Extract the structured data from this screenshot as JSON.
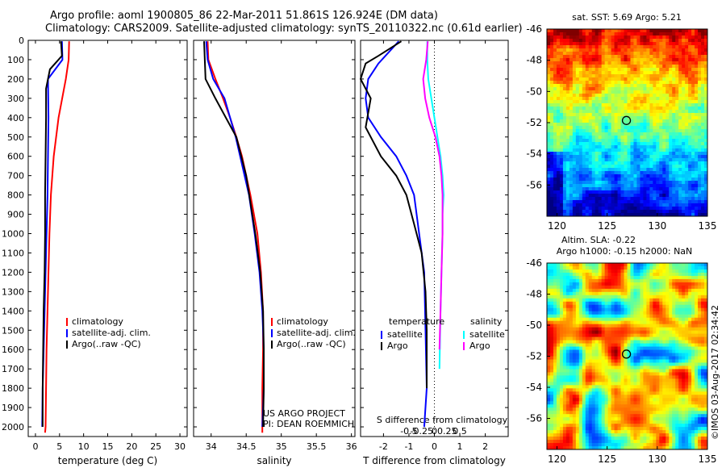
{
  "header": {
    "line1": "Argo profile: aoml 1900805_86 22-Mar-2011 51.861S 126.924E (DM data)",
    "line2": "Climatology: CARS2009. Satellite-adjusted climatology: synTS_20110322.nc (0.61d earlier)"
  },
  "colors": {
    "climatology": "#ff0000",
    "satellite": "#0000ff",
    "argo": "#000000",
    "cyan": "#00ffff",
    "magenta": "#ff00ff"
  },
  "chart_data": [
    {
      "type": "line",
      "id": "temperature",
      "xlabel": "temperature (deg C)",
      "ylim": [
        2050,
        0
      ],
      "xlim": [
        -1.5,
        31.5
      ],
      "xticks": [
        0,
        5,
        10,
        15,
        20,
        25,
        30
      ],
      "yticks": [
        0,
        100,
        200,
        300,
        400,
        500,
        600,
        700,
        800,
        900,
        1000,
        1100,
        1200,
        1300,
        1400,
        1500,
        1600,
        1700,
        1800,
        1900,
        2000
      ],
      "legend": [
        "climatology",
        "satellite-adj. clim.",
        "Argo(..raw -QC)"
      ],
      "series": [
        {
          "name": "climatology",
          "color": "#ff0000",
          "x": [
            7.0,
            6.9,
            6.3,
            4.8,
            3.8,
            3.2,
            2.9,
            2.7,
            2.5,
            2.3,
            2.2,
            2.1,
            2.0
          ],
          "y": [
            5,
            100,
            200,
            400,
            600,
            800,
            1000,
            1200,
            1400,
            1600,
            1800,
            2000,
            2030
          ]
        },
        {
          "name": "satellite-adj. clim.",
          "color": "#0000ff",
          "x": [
            5.5,
            5.6,
            2.6,
            2.7,
            2.6,
            2.5,
            2.3,
            2.1,
            1.9,
            1.7,
            1.5,
            1.4
          ],
          "y": [
            5,
            100,
            200,
            400,
            600,
            800,
            1000,
            1200,
            1400,
            1600,
            1800,
            2000
          ]
        },
        {
          "name": "Argo(..raw -QC)",
          "color": "#000000",
          "x": [
            5.3,
            5.5,
            3.0,
            2.2,
            2.2,
            2.1,
            2.0,
            2.0,
            1.9,
            1.7,
            1.6,
            1.5,
            1.5
          ],
          "y": [
            5,
            80,
            150,
            250,
            400,
            600,
            800,
            1000,
            1200,
            1400,
            1600,
            1800,
            2000
          ]
        }
      ]
    },
    {
      "type": "line",
      "id": "salinity",
      "xlabel": "salinity",
      "ylim": [
        2050,
        0
      ],
      "xlim": [
        33.75,
        36.05
      ],
      "xticks": [
        34,
        34.5,
        35,
        35.5,
        36
      ],
      "xticklabels": [
        "34",
        "34.5",
        "35",
        "35.5",
        "36"
      ],
      "legend": [
        "climatology",
        "satellite-adj. clim.",
        "Argo(..raw -QC)"
      ],
      "annotation": [
        "US ARGO PROJECT",
        "PI: DEAN ROEMMICH"
      ],
      "series": [
        {
          "name": "climatology",
          "color": "#ff0000",
          "x": [
            33.95,
            33.96,
            34.06,
            34.17,
            34.27,
            34.36,
            34.44,
            34.56,
            34.66,
            34.71,
            34.74,
            34.74,
            34.73,
            34.73
          ],
          "y": [
            5,
            100,
            200,
            300,
            400,
            500,
            600,
            800,
            1000,
            1200,
            1400,
            1600,
            1800,
            2030
          ]
        },
        {
          "name": "satellite-adj. clim.",
          "color": "#0000ff",
          "x": [
            33.93,
            33.95,
            34.03,
            34.19,
            34.35,
            34.54,
            34.62,
            34.69,
            34.73,
            34.75,
            34.75,
            34.74,
            34.73
          ],
          "y": [
            5,
            100,
            200,
            300,
            500,
            800,
            1000,
            1200,
            1400,
            1600,
            1800,
            1900,
            2000
          ]
        },
        {
          "name": "Argo(..raw -QC)",
          "color": "#000000",
          "x": [
            33.9,
            33.92,
            34.06,
            34.36,
            34.5,
            34.63,
            34.7,
            34.74,
            34.75,
            34.75,
            34.74
          ],
          "y": [
            5,
            200,
            300,
            500,
            700,
            1000,
            1200,
            1400,
            1600,
            1800,
            2000
          ]
        }
      ]
    },
    {
      "type": "line",
      "id": "difference",
      "xlabel": "T difference from climatology",
      "xlabel_top": "S difference from climatology",
      "ylim": [
        2050,
        0
      ],
      "xlim": [
        -2.9,
        2.9
      ],
      "xticks": [
        -2,
        -1,
        0,
        1,
        2
      ],
      "xticklabels": [
        "-2",
        "-1",
        "0",
        "1",
        "2"
      ],
      "sticks": [
        -0.5,
        -0.25,
        0,
        0.25,
        0.5
      ],
      "sticklabels": [
        "-0.5",
        "-0.25",
        "0",
        "0.25",
        "0.5"
      ],
      "legend": {
        "temperature_head": "temperature",
        "salinity_head": "salinity",
        "rows": [
          "satellite",
          "Argo"
        ]
      },
      "series": [
        {
          "name": "temperature satellite",
          "color": "#0000ff",
          "x": [
            -1.4,
            -2.2,
            -2.6,
            -2.7,
            -2.6,
            -2.1,
            -1.5,
            -1.1,
            -0.8,
            -0.6,
            -0.4,
            -0.35,
            -0.3,
            -0.4
          ],
          "y": [
            5,
            120,
            200,
            300,
            400,
            500,
            600,
            700,
            800,
            1000,
            1200,
            1500,
            1800,
            2000
          ]
        },
        {
          "name": "temperature Argo",
          "color": "#000000",
          "x": [
            -1.3,
            -2.2,
            -2.7,
            -2.9,
            -2.5,
            -2.7,
            -2.1,
            -1.5,
            -1.1,
            -0.8,
            -0.5,
            -0.35,
            -0.3,
            -0.3
          ],
          "y": [
            5,
            80,
            120,
            200,
            300,
            450,
            600,
            700,
            800,
            950,
            1100,
            1300,
            1500,
            1800
          ]
        },
        {
          "name": "salinity satellite",
          "color": "#00ffff",
          "x": [
            -0.14,
            -0.14,
            -0.12,
            -0.06,
            0.0,
            0.06,
            0.12,
            0.16,
            0.18,
            0.16,
            0.16,
            0.14,
            0.12,
            0.1
          ],
          "y": [
            5,
            100,
            200,
            300,
            400,
            500,
            600,
            700,
            800,
            900,
            1000,
            1200,
            1400,
            1700
          ]
        },
        {
          "name": "salinity Argo",
          "color": "#ff00ff",
          "x": [
            -0.13,
            -0.16,
            -0.22,
            -0.18,
            -0.1,
            0.02,
            0.1,
            0.14,
            0.16,
            0.16,
            0.14,
            0.12,
            0.1
          ],
          "y": [
            5,
            100,
            200,
            300,
            400,
            500,
            600,
            700,
            800,
            1000,
            1200,
            1400,
            1600
          ]
        }
      ]
    },
    {
      "type": "heatmap",
      "id": "sst_map",
      "title": "sat. SST: 5.69  Argo: 5.21",
      "xlim": [
        119,
        135
      ],
      "ylim": [
        -58,
        -46
      ],
      "xticks": [
        120,
        125,
        130,
        135
      ],
      "yticks": [
        -46,
        -48,
        -50,
        -52,
        -54,
        -56
      ],
      "marker": {
        "lon": 126.924,
        "lat": -51.861
      }
    },
    {
      "type": "heatmap",
      "id": "sla_map",
      "title": "Altim. SLA: -0.22",
      "subtitle": "Argo h1000: -0.15 h2000: NaN",
      "xlim": [
        119,
        135
      ],
      "ylim": [
        -58,
        -46
      ],
      "xticks": [
        120,
        125,
        130,
        135
      ],
      "yticks": [
        -46,
        -48,
        -50,
        -52,
        -54,
        -56
      ],
      "marker": {
        "lon": 126.924,
        "lat": -51.861
      }
    }
  ],
  "credit": "©IMOS 03-Aug-2017 02:34:42"
}
